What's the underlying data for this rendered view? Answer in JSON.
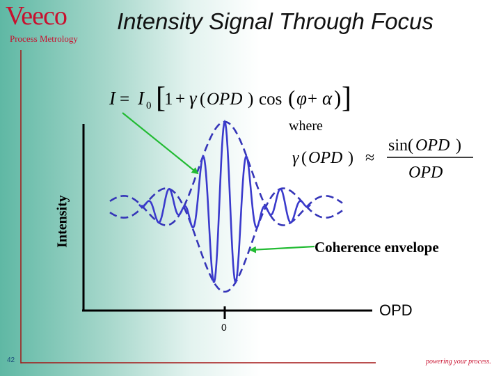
{
  "logo": {
    "name": "Veeco",
    "tagline": "Process Metrology"
  },
  "title": "Intensity Signal Through Focus",
  "equation": {
    "main": "I = I0 [1 + γ(OPD) cos(φ + α)]",
    "where_label": "where",
    "approx": "γ(OPD) ≈ sin(OPD) / OPD"
  },
  "labels": {
    "y_axis": "Intensity",
    "x_axis": "OPD",
    "zero_tick": "0",
    "coherence_envelope": "Coherence envelope"
  },
  "footer": {
    "page_number": "42",
    "tagline": "powering your process."
  },
  "colors": {
    "signal": "#3a3acc",
    "envelope": "#3535b8",
    "arrow": "#22bb33",
    "axis": "#000000",
    "brand": "#c8102e"
  },
  "chart_data": {
    "type": "line",
    "description_free": true,
    "x_range": [
      -10,
      10
    ],
    "envelope_function": "sinc",
    "fringe_frequency": 1.85,
    "series": [
      {
        "name": "Signal"
      },
      {
        "name": "Envelope"
      }
    ]
  }
}
